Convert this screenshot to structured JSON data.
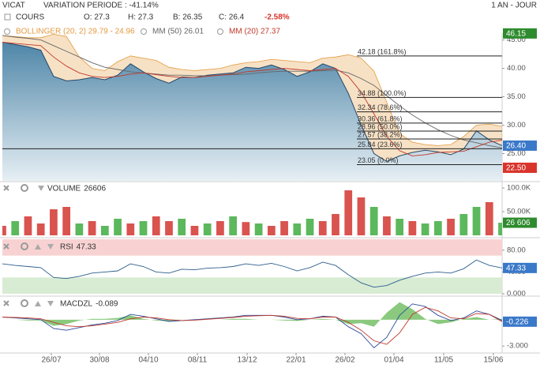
{
  "header": {
    "symbol": "VICAT",
    "variation": "VARIATION PERIODE : -41.14%",
    "period": "1 AN - JOUR",
    "open": "O: 27.3",
    "high": "H: 27.3",
    "low": "B: 26.35",
    "close": "C: 26.4",
    "change": "-2.58%"
  },
  "x_axis": {
    "xlim": [
      0,
      39
    ],
    "xticks": [
      {
        "value": 3.82,
        "label": "26/07"
      },
      {
        "value": 7.58,
        "label": "30/08"
      },
      {
        "value": 11.4,
        "label": "04/10"
      },
      {
        "value": 15.22,
        "label": "08/11"
      },
      {
        "value": 19.1,
        "label": "13/12"
      },
      {
        "value": 22.92,
        "label": "22/01"
      },
      {
        "value": 26.74,
        "label": "26/02"
      },
      {
        "value": 30.56,
        "label": "01/04"
      },
      {
        "value": 34.44,
        "label": "11/05"
      },
      {
        "value": 38.32,
        "label": "15/06"
      }
    ]
  },
  "chart_data": [
    {
      "type": "line",
      "ylim": [
        20.2,
        46.2
      ],
      "yticks": [
        {
          "value": 25,
          "label": "25.00"
        },
        {
          "value": 30,
          "label": "30.00"
        },
        {
          "value": 35,
          "label": "35.00"
        },
        {
          "value": 40,
          "label": "40.00"
        },
        {
          "value": 45,
          "label": "45.00"
        }
      ],
      "bollinger": {
        "name": "BOLLINGER (20, 2) 29.79 - 24.96",
        "color": "#e39a3f",
        "upper": [
          45.8,
          45.6,
          45.4,
          45.4,
          46.0,
          45.6,
          42.0,
          40.0,
          39.6,
          41.2,
          42.2,
          41.8,
          41.4,
          40.2,
          39.8,
          39.6,
          39.8,
          40.0,
          40.6,
          41.0,
          41.2,
          41.6,
          41.4,
          41.2,
          41.0,
          41.8,
          42.0,
          42.4,
          41.8,
          39.5,
          34.0,
          28.5,
          27.0,
          26.6,
          26.4,
          26.6,
          28.0,
          30.0,
          30.2,
          29.8
        ],
        "lower": [
          43.4,
          43.0,
          42.6,
          41.8,
          38.0,
          36.0,
          36.2,
          36.8,
          37.0,
          37.2,
          36.6,
          37.0,
          37.2,
          36.8,
          37.0,
          37.4,
          37.6,
          37.8,
          37.8,
          38.0,
          38.6,
          38.8,
          38.6,
          38.2,
          38.2,
          38.6,
          38.4,
          35.4,
          29.0,
          24.0,
          21.5,
          21.0,
          22.4,
          23.6,
          24.0,
          23.8,
          23.6,
          23.2,
          24.0,
          24.96
        ]
      },
      "series": [
        {
          "name": "COURS",
          "color": "#24476b",
          "area": true,
          "values": [
            44.6,
            44.2,
            43.8,
            43.2,
            38.6,
            37.8,
            38.0,
            38.4,
            38.0,
            38.8,
            40.8,
            39.4,
            38.2,
            37.4,
            38.5,
            38.4,
            38.8,
            39.0,
            39.2,
            40.2,
            40.0,
            40.6,
            39.8,
            38.6,
            39.4,
            40.8,
            40.0,
            35.6,
            30.0,
            25.0,
            23.6,
            24.6,
            25.2,
            25.6,
            25.3,
            24.8,
            25.8,
            29.0,
            27.4,
            26.4
          ]
        },
        {
          "name": "MM (50) 26.01",
          "color": "#666666",
          "values": [
            45.8,
            45.5,
            45.3,
            45.0,
            44.0,
            43.0,
            42.0,
            41.0,
            40.2,
            39.8,
            39.4,
            39.2,
            39.0,
            38.8,
            38.8,
            38.7,
            38.7,
            38.8,
            38.9,
            39.0,
            39.2,
            39.4,
            39.5,
            39.5,
            39.5,
            39.6,
            39.7,
            39.2,
            38.2,
            37.0,
            35.2,
            33.4,
            31.8,
            30.4,
            29.2,
            28.2,
            27.4,
            26.9,
            26.4,
            26.01
          ]
        },
        {
          "name": "MM (20) 27.37",
          "color": "#c0392b",
          "values": [
            44.6,
            44.4,
            44.2,
            44.0,
            42.0,
            40.4,
            39.2,
            38.6,
            38.4,
            38.6,
            39.0,
            39.2,
            38.9,
            38.6,
            38.4,
            38.4,
            38.6,
            38.8,
            39.0,
            39.4,
            39.6,
            39.8,
            40.0,
            39.8,
            39.6,
            39.8,
            40.0,
            38.6,
            35.8,
            32.0,
            28.0,
            25.5,
            24.6,
            24.8,
            25.2,
            25.3,
            25.4,
            26.2,
            27.0,
            27.37
          ]
        }
      ],
      "fib_levels": [
        {
          "value": 42.18,
          "label": "42.18 (161.8%)"
        },
        {
          "value": 34.88,
          "label": "34.88 (100.0%)"
        },
        {
          "value": 32.34,
          "label": "32.34 (78.6%)"
        },
        {
          "value": 30.36,
          "label": "30.36 (61.8%)"
        },
        {
          "value": 28.96,
          "label": "28.96 (50.0%)"
        },
        {
          "value": 27.57,
          "label": "27.57 (38.2%)"
        },
        {
          "value": 25.84,
          "label": "25.84 (23.6%)",
          "extended": true
        },
        {
          "value": 23.05,
          "label": "23.05 (0.0%)"
        }
      ],
      "markers": [
        {
          "value": 46.15,
          "label": "46.15",
          "color": "#2e8b2e"
        },
        {
          "value": 26.4,
          "label": "26.40",
          "color": "#3a78c9"
        },
        {
          "value": 22.5,
          "label": "22.50",
          "color": "#d9342b"
        }
      ]
    },
    {
      "type": "bar",
      "title": "VOLUME",
      "last": 26606,
      "ylim": [
        0,
        110000
      ],
      "yticks": [
        {
          "value": 50000,
          "label": "50.00K"
        },
        {
          "value": 100000,
          "label": "100.0K"
        }
      ],
      "values": [
        20000,
        30000,
        40000,
        25000,
        55000,
        60000,
        25000,
        30000,
        20000,
        35000,
        25000,
        30000,
        40000,
        30000,
        35000,
        20000,
        25000,
        30000,
        40000,
        28000,
        25000,
        20000,
        30000,
        25000,
        35000,
        30000,
        45000,
        95000,
        80000,
        60000,
        40000,
        35000,
        30000,
        25000,
        30000,
        35000,
        45000,
        60000,
        70000,
        26606
      ],
      "colors": [
        "#d9534f",
        "#5cb85c",
        "#d9534f",
        "#d9534f",
        "#d9534f",
        "#d9534f",
        "#5cb85c",
        "#d9534f",
        "#5cb85c",
        "#5cb85c",
        "#d9534f",
        "#5cb85c",
        "#d9534f",
        "#d9534f",
        "#5cb85c",
        "#d9534f",
        "#5cb85c",
        "#d9534f",
        "#5cb85c",
        "#d9534f",
        "#5cb85c",
        "#d9534f",
        "#d9534f",
        "#5cb85c",
        "#5cb85c",
        "#d9534f",
        "#d9534f",
        "#d9534f",
        "#d9534f",
        "#5cb85c",
        "#d9534f",
        "#5cb85c",
        "#d9534f",
        "#5cb85c",
        "#5cb85c",
        "#d9534f",
        "#5cb85c",
        "#5cb85c",
        "#d9534f",
        "#5cb85c"
      ],
      "markers": [
        {
          "value": 26606,
          "label": "26 606",
          "color": "#2e8b2e"
        }
      ]
    },
    {
      "type": "line",
      "title": "RSI",
      "last": 47.33,
      "ylim": [
        0,
        100
      ],
      "yticks": [
        {
          "value": 0,
          "label": "0.000"
        },
        {
          "value": 40,
          "label": "40.00"
        },
        {
          "value": 80,
          "label": "80.00"
        }
      ],
      "zones": [
        {
          "range": [
            70,
            100
          ],
          "color": "#f8d2d2"
        },
        {
          "range": [
            0,
            30
          ],
          "color": "#d8ecd4"
        }
      ],
      "series": [
        {
          "color": "#2b5d8a",
          "values": [
            55,
            52,
            50,
            48,
            30,
            28,
            32,
            38,
            40,
            42,
            55,
            50,
            40,
            38,
            45,
            44,
            47,
            48,
            50,
            55,
            52,
            56,
            50,
            42,
            48,
            58,
            52,
            35,
            20,
            12,
            15,
            25,
            32,
            38,
            40,
            38,
            46,
            62,
            52,
            47.33
          ]
        }
      ],
      "markers": [
        {
          "value": 47.33,
          "label": "47.33",
          "color": "#3a78c9"
        }
      ]
    },
    {
      "type": "line",
      "title": "MACDZL",
      "last": -0.089,
      "ylim": [
        -3.7,
        2.5
      ],
      "yticks": [
        {
          "value": -3,
          "label": "-3.000"
        }
      ],
      "histogram": {
        "color": "#6dbb5e",
        "values": [
          0,
          0,
          -0.1,
          -0.1,
          -0.7,
          -0.5,
          -0.1,
          0.1,
          0.1,
          0.2,
          0.5,
          0.1,
          -0.1,
          -0.2,
          0,
          0,
          0,
          0,
          0.1,
          0.1,
          0,
          0,
          -0.1,
          -0.15,
          0,
          0.1,
          0,
          -0.5,
          -0.4,
          -0.8,
          0.8,
          2.0,
          1.2,
          0.1,
          -0.5,
          -0.3,
          0.1,
          0.3,
          0,
          0.1
        ]
      },
      "series": [
        {
          "color": "#2b4a9a",
          "values": [
            0.3,
            0.2,
            0.1,
            0.0,
            -1.0,
            -1.2,
            -0.9,
            -0.6,
            -0.4,
            -0.1,
            0.6,
            0.4,
            0.1,
            -0.2,
            -0.1,
            0,
            0.1,
            0.2,
            0.3,
            0.5,
            0.5,
            0.5,
            0.3,
            0,
            0.1,
            0.4,
            0.3,
            -0.8,
            -1.6,
            -3.2,
            -2.0,
            0.5,
            1.8,
            1.5,
            0.5,
            -0.1,
            0.2,
            1.0,
            0.6,
            -0.089
          ]
        },
        {
          "color": "#c0392b",
          "values": [
            0.3,
            0.25,
            0.2,
            0.1,
            -0.3,
            -0.7,
            -0.8,
            -0.7,
            -0.5,
            -0.3,
            0.1,
            0.3,
            0.2,
            0,
            -0.1,
            -0.05,
            0.05,
            0.15,
            0.25,
            0.4,
            0.45,
            0.5,
            0.4,
            0.15,
            0.1,
            0.3,
            0.3,
            -0.3,
            -1.2,
            -2.4,
            -2.8,
            -1.5,
            0.6,
            1.4,
            1.0,
            0.2,
            0.1,
            0.7,
            0.6,
            -0.226
          ]
        }
      ],
      "markers": [
        {
          "value": -0.226,
          "label": "-0.226",
          "color": "#3a78c9"
        }
      ]
    }
  ]
}
